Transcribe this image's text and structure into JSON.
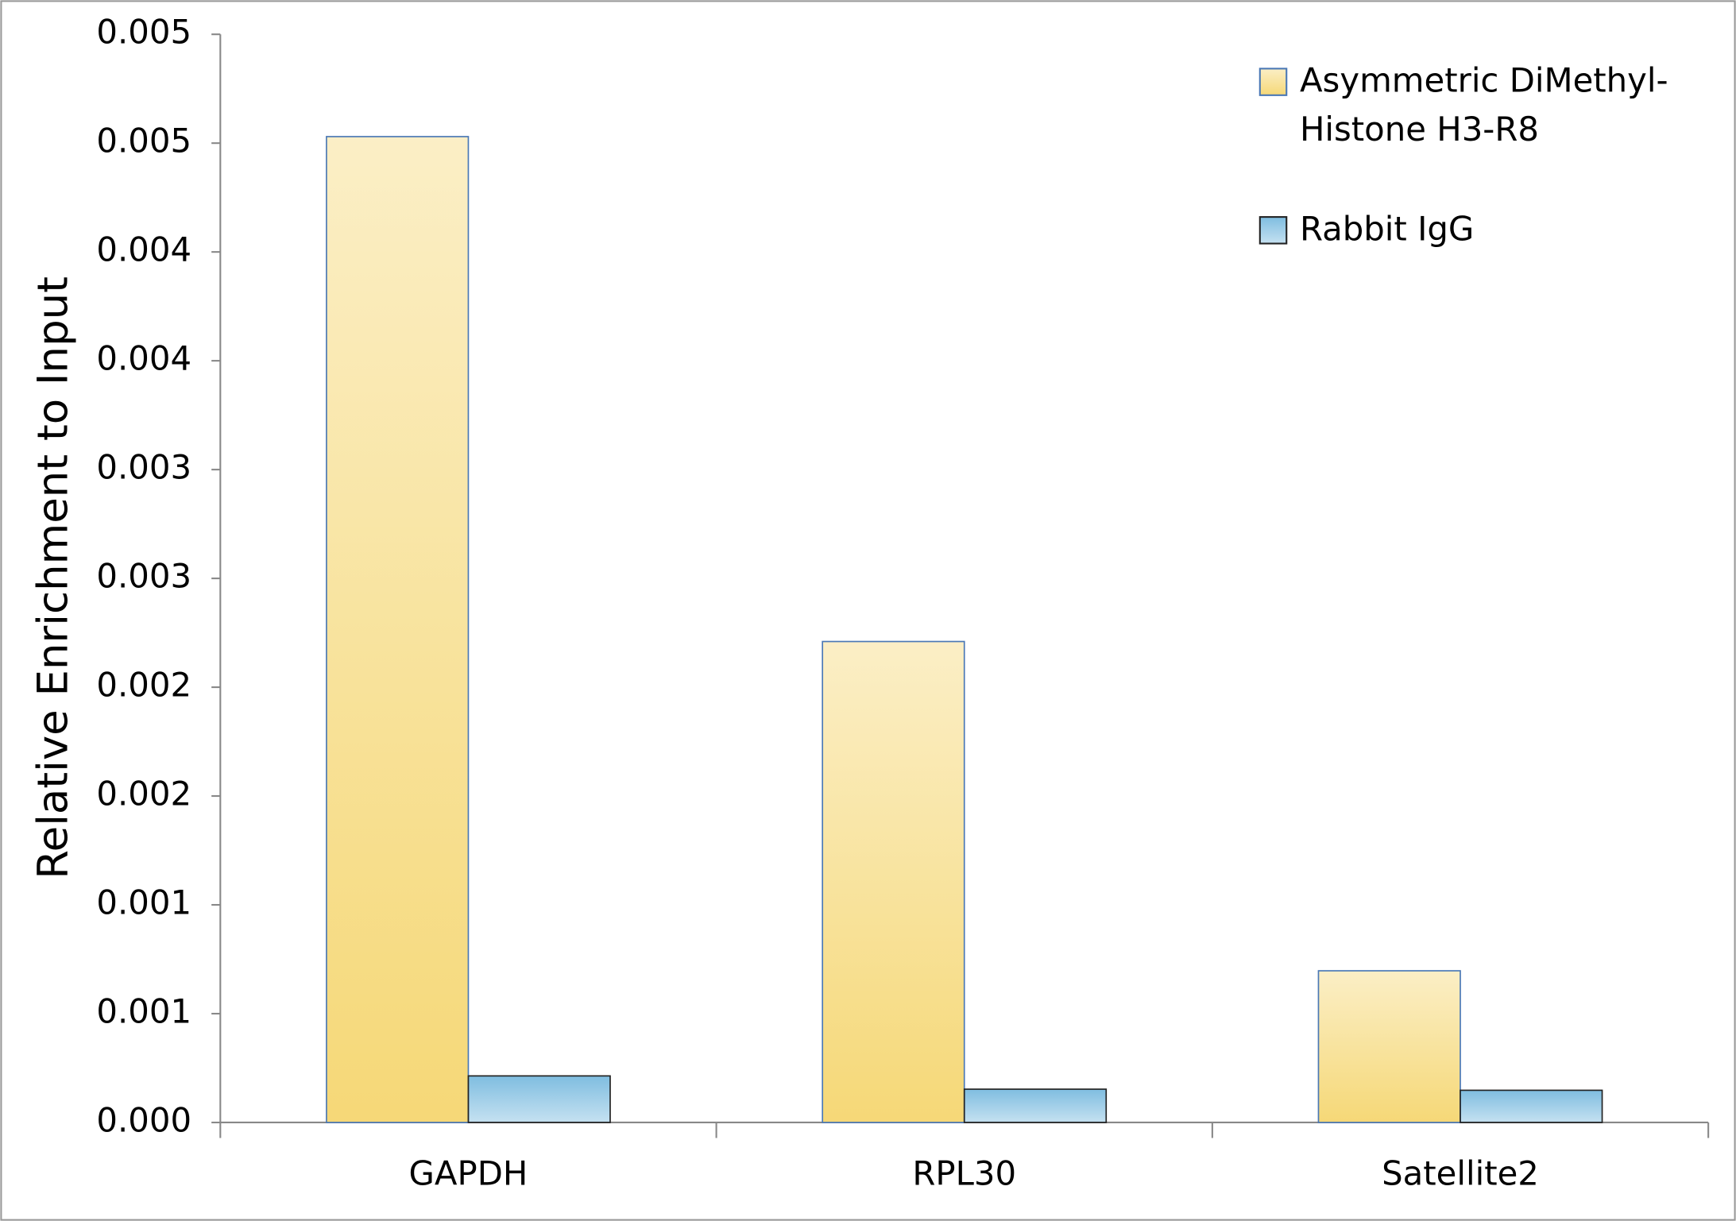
{
  "chart_data": {
    "type": "bar",
    "y_label": "Relative Enrichment to Input",
    "categories": [
      "GAPDH",
      "RPL30",
      "Satellite2"
    ],
    "series": [
      {
        "name": "Asymmetric DiMethyl-Histone H3-R8",
        "color": "#f5d670",
        "values": [
          0.00453,
          0.00221,
          0.000697
        ]
      },
      {
        "name": "Rabbit IgG",
        "color": "#7fbde0",
        "values": [
          0.000214,
          0.000153,
          0.000148
        ]
      }
    ],
    "ylim": [
      0,
      0.005
    ],
    "yticks": [
      {
        "value": 0,
        "label": "0.000"
      },
      {
        "value": 0.0005,
        "label": "0.001"
      },
      {
        "value": 0.001,
        "label": "0.001"
      },
      {
        "value": 0.0015,
        "label": "0.002"
      },
      {
        "value": 0.002,
        "label": "0.002"
      },
      {
        "value": 0.0025,
        "label": "0.003"
      },
      {
        "value": 0.003,
        "label": "0.003"
      },
      {
        "value": 0.0035,
        "label": "0.004"
      },
      {
        "value": 0.004,
        "label": "0.004"
      },
      {
        "value": 0.0045,
        "label": "0.005"
      },
      {
        "value": 0.005,
        "label": "0.005"
      }
    ],
    "grid": false,
    "legend": "top-right"
  }
}
